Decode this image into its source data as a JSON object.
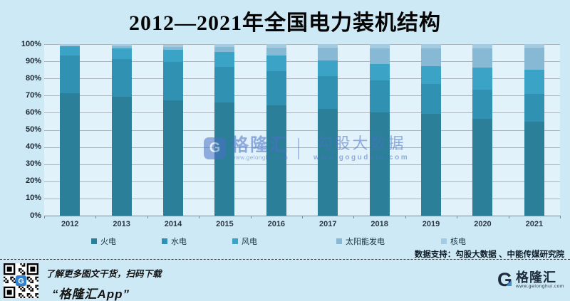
{
  "title": "2012—2021年全国电力装机结构",
  "chart_data": {
    "type": "bar",
    "stacked": true,
    "unit": "percent_share",
    "title": "2012—2021年全国电力装机结构",
    "categories": [
      "2012",
      "2013",
      "2014",
      "2015",
      "2016",
      "2017",
      "2018",
      "2019",
      "2020",
      "2021"
    ],
    "series": [
      {
        "name": "火电",
        "color": "#2c7f99",
        "values": [
          71.5,
          69.2,
          67.3,
          65.9,
          64.3,
          62.2,
          60.2,
          59.2,
          56.6,
          54.6
        ]
      },
      {
        "name": "水电",
        "color": "#3191b2",
        "values": [
          21.7,
          22.3,
          22.2,
          21.0,
          20.1,
          19.2,
          18.5,
          17.7,
          16.8,
          16.5
        ]
      },
      {
        "name": "风电",
        "color": "#3ba3c6",
        "values": [
          5.4,
          6.0,
          7.0,
          8.6,
          8.9,
          9.2,
          9.7,
          10.4,
          12.8,
          13.8
        ]
      },
      {
        "name": "太阳能发电",
        "color": "#87b8d4",
        "values": [
          0.3,
          1.3,
          1.8,
          2.8,
          4.6,
          7.3,
          9.2,
          10.2,
          11.5,
          12.9
        ]
      },
      {
        "name": "核电",
        "color": "#a5cbe0",
        "values": [
          1.1,
          1.2,
          1.5,
          1.8,
          2.0,
          2.0,
          2.4,
          2.4,
          2.3,
          2.2
        ]
      }
    ],
    "ylim": [
      0,
      100
    ],
    "yticks": [
      "0%",
      "10%",
      "20%",
      "30%",
      "40%",
      "50%",
      "60%",
      "70%",
      "80%",
      "90%",
      "100%"
    ],
    "grid": true,
    "legend_position": "bottom"
  },
  "colors": {
    "page_bg": "#cee9f6",
    "plot_bg": "#e2f2fa",
    "gridline": "#a9b4bc",
    "watermark_blue": "#4a72c6",
    "logo_navy": "#1d2c3e"
  },
  "watermark": {
    "logo_letter": "G",
    "brand": "格隆汇",
    "brand_url": "www.gelonghui.com",
    "partner": "勾股大数据",
    "partner_url": "www.gogudata.com"
  },
  "footnote": {
    "datasource": "数据支持：勾股大数据 、中能传媒研究院"
  },
  "footer": {
    "promo_line1": "了解更多图文干货，扫码下载",
    "promo_line2": "“格隆汇App”",
    "logo_letter": "G",
    "brand": "格隆汇",
    "brand_url": "www.gelonghui.com"
  }
}
